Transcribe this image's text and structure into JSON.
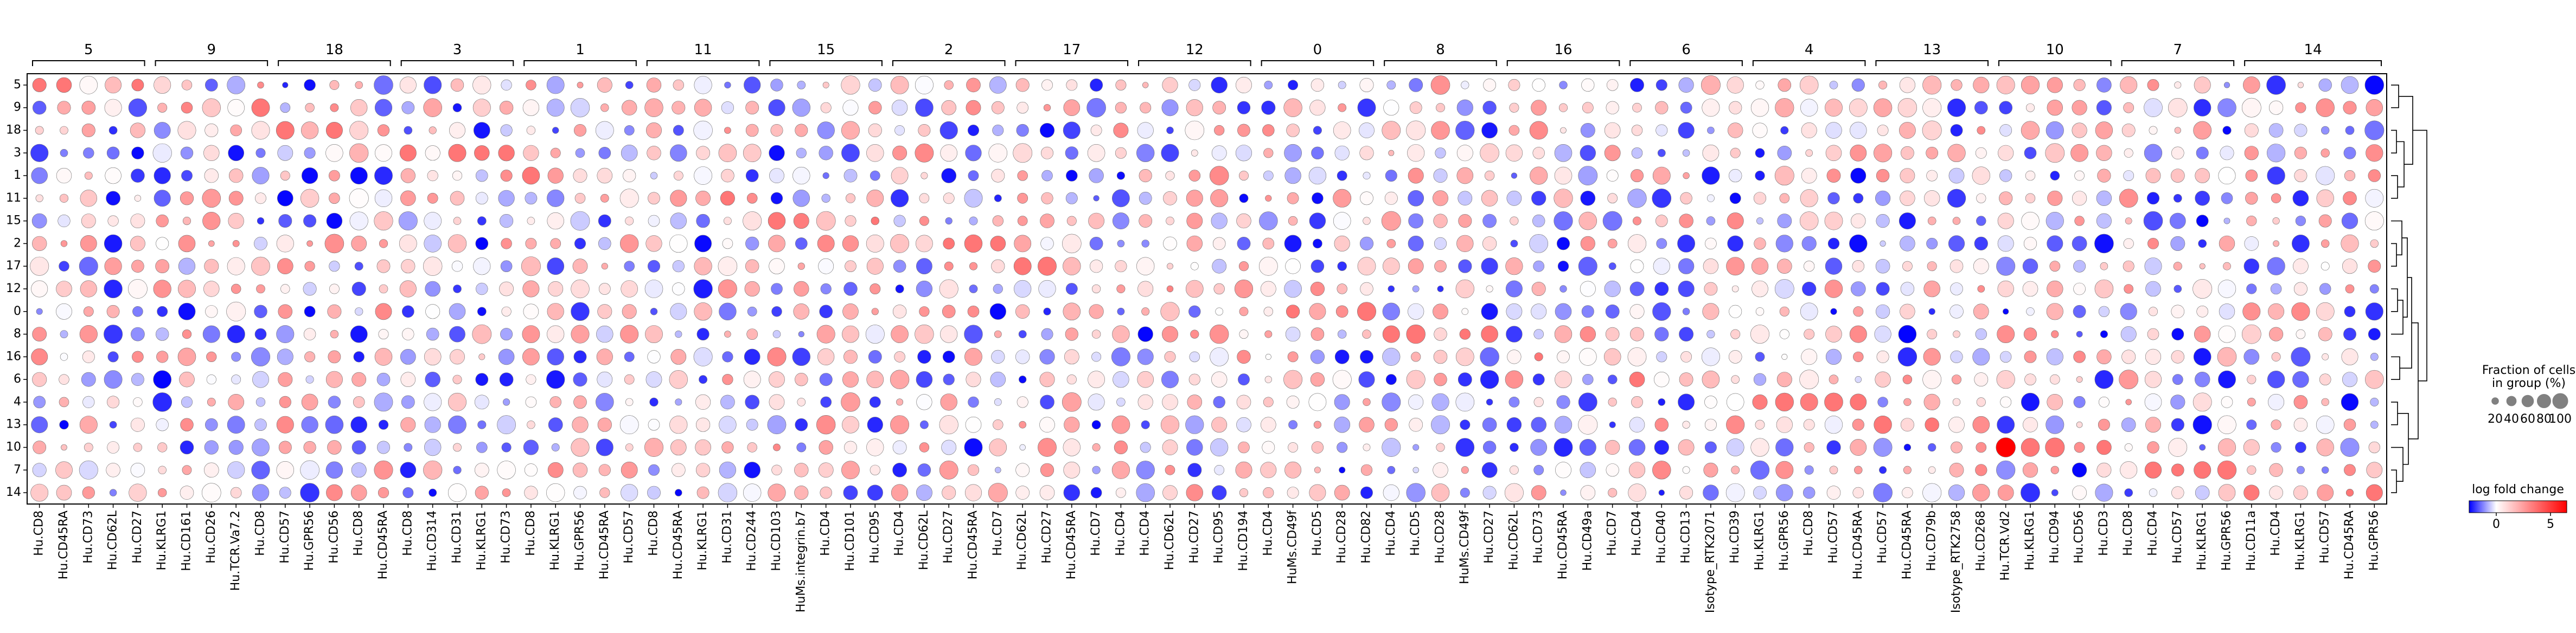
{
  "chart_data": {
    "type": "dotplot",
    "groups": [
      {
        "label": "5",
        "genes": [
          "Hu.CD8",
          "Hu.CD45RA",
          "Hu.CD73",
          "Hu.CD62L",
          "Hu.CD27"
        ]
      },
      {
        "label": "9",
        "genes": [
          "Hu.KLRG1",
          "Hu.CD161",
          "Hu.CD26",
          "Hu.TCR.Va7.2",
          "Hu.CD8"
        ]
      },
      {
        "label": "18",
        "genes": [
          "Hu.CD57",
          "Hu.GPR56",
          "Hu.CD56",
          "Hu.CD8",
          "Hu.CD45RA"
        ]
      },
      {
        "label": "3",
        "genes": [
          "Hu.CD8",
          "Hu.CD314",
          "Hu.CD31",
          "Hu.KLRG1",
          "Hu.CD73"
        ]
      },
      {
        "label": "1",
        "genes": [
          "Hu.CD8",
          "Hu.KLRG1",
          "Hu.GPR56",
          "Hu.CD45RA",
          "Hu.CD57"
        ]
      },
      {
        "label": "11",
        "genes": [
          "Hu.CD8",
          "Hu.CD45RA",
          "Hu.KLRG1",
          "Hu.CD31",
          "Hu.CD244"
        ]
      },
      {
        "label": "15",
        "genes": [
          "Hu.CD103",
          "HuMs.integrin.b7",
          "Hu.CD4",
          "Hu.CD101",
          "Hu.CD95"
        ]
      },
      {
        "label": "2",
        "genes": [
          "Hu.CD4",
          "Hu.CD62L",
          "Hu.CD27",
          "Hu.CD45RA",
          "Hu.CD7"
        ]
      },
      {
        "label": "17",
        "genes": [
          "Hu.CD62L",
          "Hu.CD27",
          "Hu.CD45RA",
          "Hu.CD7",
          "Hu.CD4"
        ]
      },
      {
        "label": "12",
        "genes": [
          "Hu.CD4",
          "Hu.CD62L",
          "Hu.CD27",
          "Hu.CD95",
          "Hu.CD194"
        ]
      },
      {
        "label": "0",
        "genes": [
          "Hu.CD4",
          "HuMs.CD49f",
          "Hu.CD5",
          "Hu.CD28",
          "Hu.CD82"
        ]
      },
      {
        "label": "8",
        "genes": [
          "Hu.CD4",
          "Hu.CD5",
          "Hu.CD28",
          "HuMs.CD49f",
          "Hu.CD27"
        ]
      },
      {
        "label": "16",
        "genes": [
          "Hu.CD62L",
          "Hu.CD73",
          "Hu.CD45RA",
          "Hu.CD49a",
          "Hu.CD7"
        ]
      },
      {
        "label": "6",
        "genes": [
          "Hu.CD4",
          "Hu.CD40",
          "Hu.CD13",
          "Isotype_RTK2071",
          "Hu.CD39"
        ]
      },
      {
        "label": "4",
        "genes": [
          "Hu.KLRG1",
          "Hu.GPR56",
          "Hu.CD8",
          "Hu.CD57",
          "Hu.CD45RA"
        ]
      },
      {
        "label": "13",
        "genes": [
          "Hu.CD57",
          "Hu.CD45RA",
          "Hu.CD79b",
          "Isotype_RTK2758",
          "Hu.CD268"
        ]
      },
      {
        "label": "10",
        "genes": [
          "Hu.TCR.Vd2",
          "Hu.KLRG1",
          "Hu.CD94",
          "Hu.CD56",
          "Hu.CD3"
        ]
      },
      {
        "label": "7",
        "genes": [
          "Hu.CD8",
          "Hu.CD4",
          "Hu.CD57",
          "Hu.KLRG1",
          "Hu.GPR56"
        ]
      },
      {
        "label": "14",
        "genes": [
          "Hu.CD11a",
          "Hu.CD4",
          "Hu.KLRG1",
          "Hu.CD57",
          "Hu.CD45RA",
          "Hu.GPR56"
        ]
      }
    ],
    "rows": [
      "5",
      "9",
      "18",
      "3",
      "1",
      "11",
      "15",
      "2",
      "17",
      "12",
      "0",
      "8",
      "16",
      "6",
      "4",
      "13",
      "10",
      "7",
      "14"
    ],
    "highlight": {
      "row": "10",
      "gene_index": 80,
      "value": 6.5,
      "fraction": 0.95
    },
    "size_legend": {
      "title_lines": [
        "Fraction of cells",
        "in group (%)"
      ],
      "ticks": [
        "20",
        "40",
        "60",
        "80",
        "100"
      ]
    },
    "color_legend": {
      "title": "log fold change",
      "ticks": [
        "0",
        "5"
      ],
      "min": -2.5,
      "max": 6.5,
      "cmap": "bwr"
    },
    "colors": {
      "low": "#0000ff",
      "mid": "#ffffff",
      "high": "#ff0000",
      "edge": "#6e6e6e"
    }
  }
}
